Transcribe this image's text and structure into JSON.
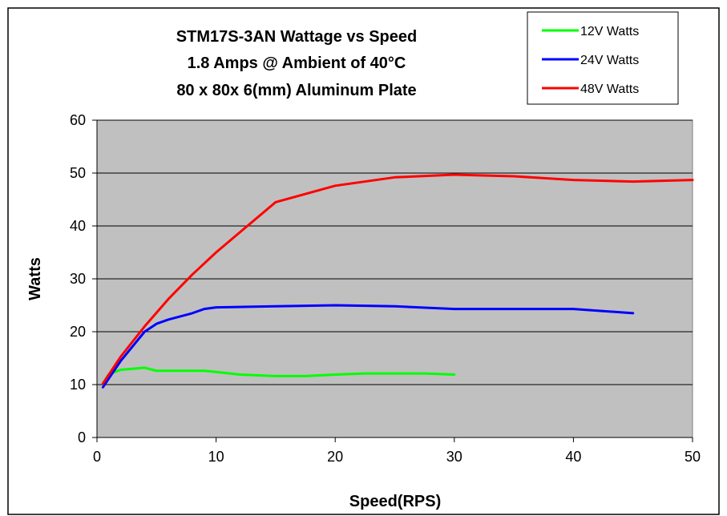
{
  "chart_data": {
    "type": "line",
    "title_lines": [
      "STM17S-3AN  Wattage vs Speed",
      "1.8 Amps @ Ambient of 40°C",
      "80 x 80x 6(mm) Aluminum Plate"
    ],
    "xlabel": "Speed(RPS)",
    "ylabel": "Watts",
    "xlim": [
      0,
      50
    ],
    "ylim": [
      0,
      60
    ],
    "x_ticks": [
      0,
      10,
      20,
      30,
      40,
      50
    ],
    "y_ticks": [
      0,
      10,
      20,
      30,
      40,
      50,
      60
    ],
    "grid": "horizontal",
    "plot_background": "#c0c0c0",
    "legend_position": "top-right",
    "series": [
      {
        "name": "12V Watts",
        "color": "#00ff00",
        "x": [
          0.5,
          1,
          2,
          3,
          4,
          5,
          6,
          7,
          8,
          9,
          10,
          12,
          15,
          17.5,
          20,
          22.5,
          25,
          27.5,
          30
        ],
        "y": [
          10.2,
          12,
          12.8,
          13,
          13.2,
          12.6,
          12.6,
          12.6,
          12.6,
          12.6,
          12.4,
          11.9,
          11.6,
          11.6,
          11.9,
          12.1,
          12.1,
          12.1,
          11.9
        ]
      },
      {
        "name": "24V Watts",
        "color": "#0000ff",
        "x": [
          0.5,
          2,
          4,
          5,
          6,
          8,
          9,
          10,
          15,
          20,
          25,
          30,
          35,
          40,
          45
        ],
        "y": [
          9.5,
          14.5,
          20,
          21.5,
          22.3,
          23.5,
          24.3,
          24.6,
          24.8,
          25,
          24.8,
          24.3,
          24.3,
          24.3,
          23.5
        ]
      },
      {
        "name": "48V Watts",
        "color": "#ff0000",
        "x": [
          0.5,
          2,
          4,
          6,
          8,
          10,
          12,
          15,
          20,
          25,
          30,
          35,
          40,
          45,
          50
        ],
        "y": [
          10.2,
          15.3,
          21,
          26.2,
          30.8,
          35,
          38.8,
          44.5,
          47.6,
          49.2,
          49.7,
          49.4,
          48.7,
          48.4,
          48.7
        ]
      }
    ]
  }
}
